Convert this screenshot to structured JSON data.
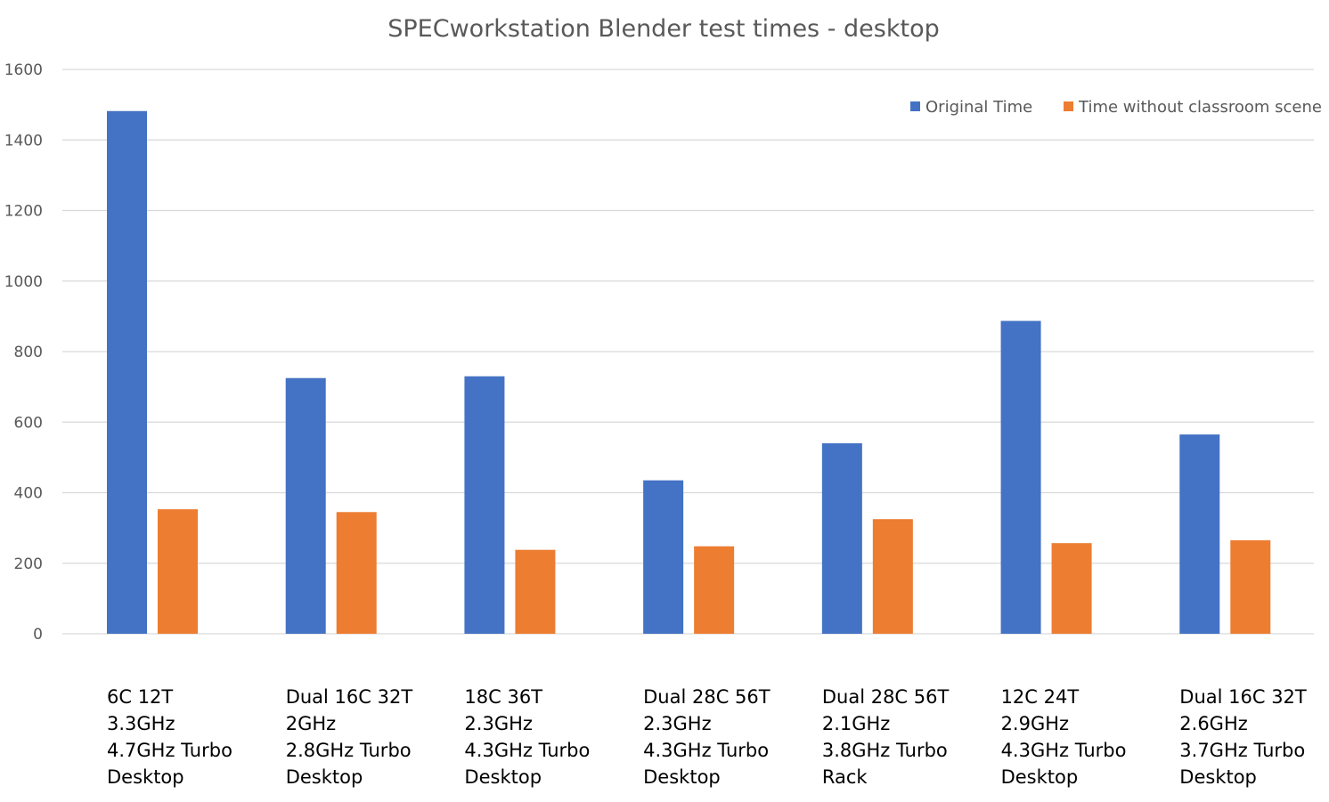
{
  "chart_data": {
    "type": "bar",
    "title": "SPECworkstation Blender test times - desktop",
    "xlabel": "",
    "ylabel": "",
    "ylim": [
      0,
      1600
    ],
    "yticks": [
      0,
      200,
      400,
      600,
      800,
      1000,
      1200,
      1400,
      1600
    ],
    "grid": true,
    "legend_position": "top-right",
    "categories": [
      [
        "6C 12T",
        "3.3GHz",
        "4.7GHz Turbo",
        "Desktop"
      ],
      [
        "Dual 16C 32T",
        "2GHz",
        "2.8GHz Turbo",
        "Desktop"
      ],
      [
        "18C 36T",
        "2.3GHz",
        "4.3GHz Turbo",
        "Desktop"
      ],
      [
        "Dual 28C 56T",
        "2.3GHz",
        "4.3GHz Turbo",
        "Desktop"
      ],
      [
        "Dual 28C 56T",
        "2.1GHz",
        "3.8GHz Turbo",
        "Rack"
      ],
      [
        "12C 24T",
        "2.9GHz",
        "4.3GHz Turbo",
        "Desktop"
      ],
      [
        "Dual 16C 32T",
        "2.6GHz",
        "3.7GHz Turbo",
        "Desktop"
      ]
    ],
    "series": [
      {
        "name": "Original Time",
        "color": "#4472c4",
        "values": [
          1482,
          725,
          730,
          435,
          540,
          887,
          565
        ]
      },
      {
        "name": "Time without classroom scene",
        "color": "#ed7d31",
        "values": [
          353,
          345,
          238,
          248,
          325,
          257,
          265
        ]
      }
    ]
  }
}
